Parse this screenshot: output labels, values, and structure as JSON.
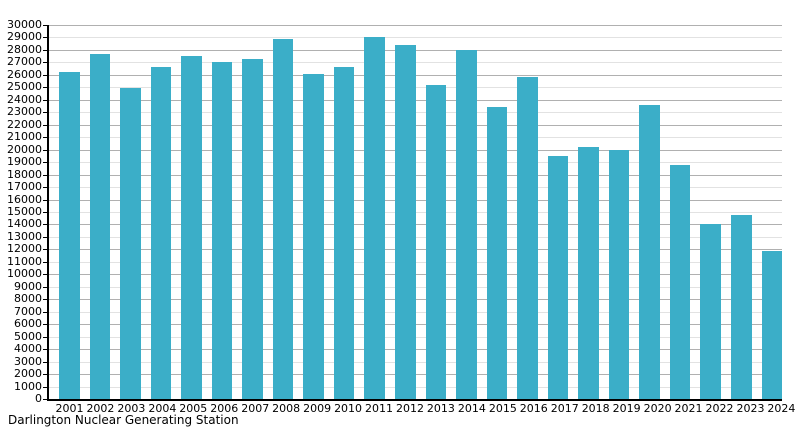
{
  "chart_data": {
    "type": "bar",
    "title": "",
    "caption": "Darlington Nuclear Generating Station",
    "categories": [
      "2001",
      "2002",
      "2003",
      "2004",
      "2005",
      "2006",
      "2007",
      "2008",
      "2009",
      "2010",
      "2011",
      "2012",
      "2013",
      "2014",
      "2015",
      "2016",
      "2017",
      "2018",
      "2019",
      "2020",
      "2021",
      "2022",
      "2023",
      "2024"
    ],
    "values": [
      26200,
      27650,
      24950,
      26650,
      27550,
      27000,
      27300,
      28850,
      26100,
      26600,
      29000,
      28400,
      25150,
      28000,
      23400,
      25800,
      19500,
      20250,
      20000,
      23600,
      18750,
      14050,
      14800,
      11900
    ],
    "xlabel": "",
    "ylabel": "",
    "ylim": [
      0,
      30000
    ],
    "ytick_step": 1000,
    "grid": "horizontal every 1000, darker line every 2000",
    "legend": "none"
  },
  "colors": {
    "bar": "#3BAEC8",
    "grid_major": "#b0b0b0",
    "grid_minor": "#e2e2e2",
    "axis": "#000000",
    "text": "#000000",
    "background": "#ffffff"
  }
}
